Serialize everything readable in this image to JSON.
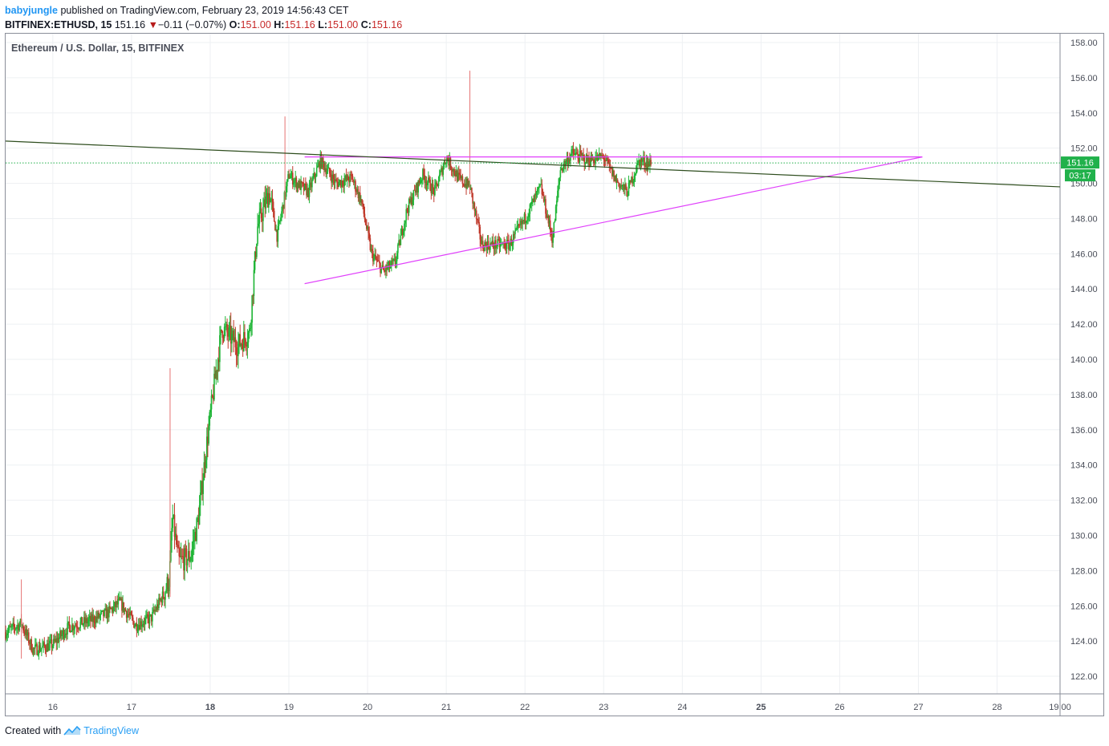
{
  "header": {
    "user": "babyjungle",
    "published_text": "published on TradingView.com, February 23, 2019 14:56:43 CET",
    "symbol": "BITFINEX:ETHUSD, 15",
    "last": "151.16",
    "change_arrow": "▼",
    "change": "−0.11 (−0.07%)",
    "o_label": "O:",
    "o_value": "151.00",
    "h_label": "H:",
    "h_value": "151.16",
    "l_label": "L:",
    "l_value": "151.00",
    "c_label": "C:",
    "c_value": "151.16"
  },
  "chart_title": "Ethereum / U.S. Dollar, 15, BITFINEX",
  "footer": {
    "created_with": "Created with",
    "brand": "TradingView",
    "logo_icon": "tradingview-logo-icon"
  },
  "colors": {
    "up": "#26a69a",
    "up_green": "#1fb536",
    "down": "#c0392b",
    "pink_line": "#e040fb",
    "trend_line": "#2e4d1e",
    "price_tag": "#21b14b",
    "grid": "#eef0f3",
    "axis_text": "#4a4e59",
    "border": "#8a8e99"
  },
  "chart_data": {
    "type": "candlestick",
    "title": "Ethereum / U.S. Dollar, 15, BITFINEX",
    "ylim": [
      121,
      158.5
    ],
    "xlim": [
      15.4,
      28.8
    ],
    "y_ticks": [
      122,
      124,
      126,
      128,
      130,
      132,
      134,
      136,
      138,
      140,
      142,
      144,
      146,
      148,
      150,
      152,
      154,
      156,
      158
    ],
    "y_tick_labels": [
      "122.00",
      "124.00",
      "126.00",
      "128.00",
      "130.00",
      "132.00",
      "134.00",
      "136.00",
      "138.00",
      "140.00",
      "142.00",
      "144.00",
      "146.00",
      "148.00",
      "150.00",
      "152.00",
      "154.00",
      "156.00",
      "158.00"
    ],
    "x_ticks": [
      {
        "x": 16,
        "label": "16",
        "bold": false
      },
      {
        "x": 17,
        "label": "17",
        "bold": false
      },
      {
        "x": 18,
        "label": "18",
        "bold": true
      },
      {
        "x": 19,
        "label": "19",
        "bold": false
      },
      {
        "x": 20,
        "label": "20",
        "bold": false
      },
      {
        "x": 21,
        "label": "21",
        "bold": false
      },
      {
        "x": 22,
        "label": "22",
        "bold": false
      },
      {
        "x": 23,
        "label": "23",
        "bold": false
      },
      {
        "x": 24,
        "label": "24",
        "bold": false
      },
      {
        "x": 25,
        "label": "25",
        "bold": true
      },
      {
        "x": 26,
        "label": "26",
        "bold": false
      },
      {
        "x": 27,
        "label": "27",
        "bold": false
      },
      {
        "x": 28,
        "label": "28",
        "bold": false
      },
      {
        "x": 28.8,
        "label": "19:00",
        "bold": false
      }
    ],
    "last_price": 151.16,
    "last_price_label": "151.16",
    "countdown_label": "03:17",
    "price_path": [
      [
        15.4,
        124.5
      ],
      [
        15.6,
        125.0
      ],
      [
        15.75,
        123.5
      ],
      [
        16.0,
        123.8
      ],
      [
        16.2,
        124.8
      ],
      [
        16.5,
        125.2
      ],
      [
        16.7,
        125.6
      ],
      [
        16.85,
        126.2
      ],
      [
        17.05,
        124.9
      ],
      [
        17.25,
        125.3
      ],
      [
        17.4,
        126.6
      ],
      [
        17.48,
        127.5
      ],
      [
        17.52,
        131.0
      ],
      [
        17.6,
        128.5
      ],
      [
        17.75,
        128.8
      ],
      [
        17.85,
        131.0
      ],
      [
        17.95,
        135.0
      ],
      [
        18.05,
        138.5
      ],
      [
        18.15,
        141.8
      ],
      [
        18.35,
        140.8
      ],
      [
        18.5,
        141.5
      ],
      [
        18.6,
        147.5
      ],
      [
        18.75,
        149.5
      ],
      [
        18.85,
        147.0
      ],
      [
        19.0,
        150.5
      ],
      [
        19.1,
        150.0
      ],
      [
        19.25,
        149.5
      ],
      [
        19.4,
        151.3
      ],
      [
        19.6,
        150.0
      ],
      [
        19.8,
        150.3
      ],
      [
        19.92,
        149.0
      ],
      [
        20.05,
        146.0
      ],
      [
        20.2,
        145.0
      ],
      [
        20.35,
        145.5
      ],
      [
        20.5,
        148.5
      ],
      [
        20.7,
        150.5
      ],
      [
        20.85,
        149.5
      ],
      [
        21.0,
        151.5
      ],
      [
        21.15,
        150.3
      ],
      [
        21.3,
        149.8
      ],
      [
        21.45,
        146.5
      ],
      [
        21.6,
        146.5
      ],
      [
        21.8,
        146.5
      ],
      [
        22.0,
        148.0
      ],
      [
        22.2,
        149.8
      ],
      [
        22.35,
        146.8
      ],
      [
        22.45,
        150.8
      ],
      [
        22.6,
        151.7
      ],
      [
        22.8,
        151.3
      ],
      [
        23.0,
        151.5
      ],
      [
        23.15,
        150.2
      ],
      [
        23.3,
        149.5
      ],
      [
        23.45,
        151.3
      ],
      [
        23.6,
        151.1
      ]
    ],
    "annotations": [
      {
        "name": "resistance-line",
        "color": "#e040fb",
        "from": [
          19.2,
          151.5
        ],
        "to": [
          27.05,
          151.5
        ]
      },
      {
        "name": "rising-support-line",
        "color": "#e040fb",
        "from": [
          19.2,
          144.3
        ],
        "to": [
          27.05,
          151.5
        ]
      },
      {
        "name": "descending-trend-line",
        "color": "#2e4d1e",
        "from": [
          15.4,
          152.4
        ],
        "to": [
          28.8,
          149.8
        ]
      }
    ]
  }
}
